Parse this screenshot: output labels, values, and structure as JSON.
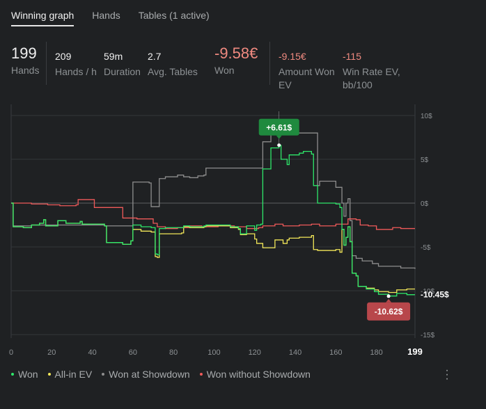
{
  "tabs": [
    {
      "label": "Winning graph",
      "active": true
    },
    {
      "label": "Hands",
      "active": false
    },
    {
      "label": "Tables (1 active)",
      "active": false
    }
  ],
  "stats": {
    "hands": {
      "value": "199",
      "label": "Hands"
    },
    "hands_per_hour": {
      "value": "209",
      "label": "Hands / h"
    },
    "duration": {
      "value": "59m",
      "label": "Duration"
    },
    "avg_tables": {
      "value": "2.7",
      "label": "Avg. Tables"
    },
    "won": {
      "value": "-9.58€",
      "label": "Won"
    },
    "amount_won_ev": {
      "value": "-9.15€",
      "label_line1": "Amount Won",
      "label_line2": "EV"
    },
    "win_rate_ev": {
      "value": "-115",
      "label_line1": "Win Rate EV,",
      "label_line2": "bb/100"
    }
  },
  "colors": {
    "won": "#2ee86a",
    "allin_ev": "#f3e859",
    "showdown": "#8e8e8e",
    "no_showdown": "#f05a5a",
    "badge_green": "#1f8a3e",
    "badge_red": "#b8474b"
  },
  "chart_data": {
    "type": "line",
    "xlim": [
      0,
      199
    ],
    "ylim": [
      -15,
      10
    ],
    "x_ticks": [
      0,
      20,
      40,
      60,
      80,
      100,
      120,
      140,
      160,
      180
    ],
    "x_last_label": "199",
    "y_ticks": [
      "10$",
      "5$",
      "0$",
      "-5$",
      "-10$",
      "-15$"
    ],
    "y_tick_values": [
      10,
      5,
      0,
      -5,
      -10,
      -15
    ],
    "grid": "horizontal",
    "legend_position": "bottom",
    "series": [
      {
        "name": "Won",
        "color_key": "won",
        "points": [
          [
            0,
            0
          ],
          [
            1,
            -2.7
          ],
          [
            6,
            -2.8
          ],
          [
            10,
            -2.5
          ],
          [
            14,
            -2.3
          ],
          [
            16,
            -1.9
          ],
          [
            17,
            -2.6
          ],
          [
            20,
            -2.6
          ],
          [
            23,
            -2.0
          ],
          [
            27,
            -2.3
          ],
          [
            34,
            -2.1
          ],
          [
            35,
            -2.4
          ],
          [
            40,
            -2.4
          ],
          [
            46,
            -2.6
          ],
          [
            47,
            -4.5
          ],
          [
            55,
            -4.7
          ],
          [
            59,
            -4.3
          ],
          [
            60,
            -2.5
          ],
          [
            64,
            -2.7
          ],
          [
            69,
            -2.8
          ],
          [
            71,
            -5.8
          ],
          [
            72,
            -5.9
          ],
          [
            73,
            -2.9
          ],
          [
            76,
            -2.8
          ],
          [
            84,
            -2.8
          ],
          [
            85,
            -2.6
          ],
          [
            88,
            -2.7
          ],
          [
            95,
            -2.6
          ],
          [
            96,
            -2.5
          ],
          [
            104,
            -2.5
          ],
          [
            108,
            -2.7
          ],
          [
            112,
            -2.9
          ],
          [
            113,
            -3.5
          ],
          [
            116,
            -2.6
          ],
          [
            120,
            -3.1
          ],
          [
            121,
            -2.5
          ],
          [
            123,
            -2.4
          ],
          [
            124,
            3.9
          ],
          [
            128,
            6.3
          ],
          [
            132,
            6.6
          ],
          [
            133,
            5.0
          ],
          [
            136,
            4.4
          ],
          [
            137,
            5.5
          ],
          [
            142,
            5.7
          ],
          [
            144,
            5.9
          ],
          [
            147,
            5.9
          ],
          [
            148,
            5.6
          ],
          [
            149,
            2.0
          ],
          [
            151,
            0
          ],
          [
            159,
            0
          ],
          [
            160,
            -0.1
          ],
          [
            162,
            -0.5
          ],
          [
            163,
            -3.0
          ],
          [
            164,
            -4.8
          ],
          [
            165,
            -3.9
          ],
          [
            166,
            -2.7
          ],
          [
            167,
            -4.4
          ],
          [
            168,
            -8.0
          ],
          [
            170,
            -8.3
          ],
          [
            171,
            -9.5
          ],
          [
            175,
            -9.8
          ],
          [
            179,
            -10.1
          ],
          [
            181,
            -10.4
          ],
          [
            186,
            -10.6
          ],
          [
            190,
            -10.3
          ],
          [
            195,
            -10.45
          ],
          [
            199,
            -10.45
          ]
        ]
      },
      {
        "name": "All-in EV",
        "color_key": "allin_ev",
        "points": [
          [
            0,
            0
          ],
          [
            1,
            -2.7
          ],
          [
            6,
            -2.8
          ],
          [
            10,
            -2.5
          ],
          [
            14,
            -2.3
          ],
          [
            16,
            -1.9
          ],
          [
            17,
            -2.6
          ],
          [
            20,
            -2.6
          ],
          [
            23,
            -2.0
          ],
          [
            27,
            -2.3
          ],
          [
            34,
            -2.1
          ],
          [
            35,
            -2.4
          ],
          [
            40,
            -2.4
          ],
          [
            46,
            -2.6
          ],
          [
            47,
            -4.5
          ],
          [
            55,
            -4.7
          ],
          [
            59,
            -4.3
          ],
          [
            60,
            -3.0
          ],
          [
            64,
            -3.2
          ],
          [
            69,
            -3.3
          ],
          [
            71,
            -6.1
          ],
          [
            72,
            -6.2
          ],
          [
            73,
            -3.5
          ],
          [
            76,
            -3.5
          ],
          [
            84,
            -3.4
          ],
          [
            85,
            -2.7
          ],
          [
            88,
            -2.8
          ],
          [
            95,
            -2.7
          ],
          [
            96,
            -2.6
          ],
          [
            104,
            -2.6
          ],
          [
            108,
            -2.8
          ],
          [
            112,
            -3.0
          ],
          [
            113,
            -3.6
          ],
          [
            116,
            -3.5
          ],
          [
            120,
            -4.1
          ],
          [
            121,
            -4.6
          ],
          [
            124,
            -5.1
          ],
          [
            130,
            -4.2
          ],
          [
            134,
            -4.6
          ],
          [
            136,
            -4.2
          ],
          [
            137,
            -4.0
          ],
          [
            142,
            -3.9
          ],
          [
            148,
            -3.7
          ],
          [
            149,
            -5.3
          ],
          [
            151,
            -5.4
          ],
          [
            159,
            -5.4
          ],
          [
            160,
            -5.3
          ],
          [
            162,
            -5.6
          ],
          [
            163,
            -3.0
          ],
          [
            164,
            -4.8
          ],
          [
            165,
            -3.9
          ],
          [
            166,
            -2.7
          ],
          [
            167,
            -4.4
          ],
          [
            168,
            -8.0
          ],
          [
            170,
            -8.3
          ],
          [
            171,
            -9.5
          ],
          [
            175,
            -9.7
          ],
          [
            179,
            -9.9
          ],
          [
            181,
            -10.1
          ],
          [
            186,
            -10.2
          ],
          [
            190,
            -9.9
          ],
          [
            195,
            -9.8
          ],
          [
            199,
            -9.8
          ]
        ]
      },
      {
        "name": "Won at Showdown",
        "color_key": "showdown",
        "points": [
          [
            0,
            0
          ],
          [
            1,
            -2.6
          ],
          [
            10,
            -2.5
          ],
          [
            20,
            -2.5
          ],
          [
            30,
            -2.5
          ],
          [
            40,
            -2.5
          ],
          [
            46,
            -2.6
          ],
          [
            55,
            -2.6
          ],
          [
            59,
            -2.6
          ],
          [
            60,
            2.4
          ],
          [
            67,
            2.4
          ],
          [
            68,
            2.3
          ],
          [
            69,
            -0.4
          ],
          [
            72,
            -0.4
          ],
          [
            73,
            2.8
          ],
          [
            76,
            3.0
          ],
          [
            82,
            3.2
          ],
          [
            85,
            3.0
          ],
          [
            88,
            2.9
          ],
          [
            92,
            3.1
          ],
          [
            95,
            3.2
          ],
          [
            96,
            4.0
          ],
          [
            123,
            4.0
          ],
          [
            124,
            7.0
          ],
          [
            128,
            8.0
          ],
          [
            149,
            8.0
          ],
          [
            151,
            2.0
          ],
          [
            152,
            2.5
          ],
          [
            159,
            2.5
          ],
          [
            160,
            1.8
          ],
          [
            162,
            1.8
          ],
          [
            163,
            0
          ],
          [
            164,
            -1.5
          ],
          [
            165,
            0
          ],
          [
            166,
            0.5
          ],
          [
            167,
            -2.0
          ],
          [
            168,
            -6.0
          ],
          [
            170,
            -6.3
          ],
          [
            173,
            -6.6
          ],
          [
            178,
            -6.9
          ],
          [
            181,
            -7.2
          ],
          [
            192,
            -7.4
          ],
          [
            199,
            -7.5
          ]
        ]
      },
      {
        "name": "Won without Showdown",
        "color_key": "no_showdown",
        "points": [
          [
            0,
            0
          ],
          [
            4,
            0
          ],
          [
            10,
            -0.1
          ],
          [
            18,
            -0.2
          ],
          [
            24,
            -0.3
          ],
          [
            32,
            -0.2
          ],
          [
            33,
            0.4
          ],
          [
            40,
            0.4
          ],
          [
            41,
            -0.5
          ],
          [
            47,
            -0.5
          ],
          [
            55,
            -1.7
          ],
          [
            62,
            -1.8
          ],
          [
            70,
            -2.3
          ],
          [
            72,
            -2.7
          ],
          [
            76,
            -2.9
          ],
          [
            82,
            -2.8
          ],
          [
            88,
            -2.6
          ],
          [
            94,
            -2.7
          ],
          [
            102,
            -2.6
          ],
          [
            110,
            -2.7
          ],
          [
            116,
            -2.9
          ],
          [
            122,
            -2.8
          ],
          [
            124,
            -2.6
          ],
          [
            130,
            -2.4
          ],
          [
            134,
            -2.6
          ],
          [
            142,
            -2.5
          ],
          [
            148,
            -2.4
          ],
          [
            150,
            -2.4
          ],
          [
            152,
            -2.6
          ],
          [
            160,
            -2.4
          ],
          [
            164,
            -2.4
          ],
          [
            166,
            -1.8
          ],
          [
            170,
            -1.9
          ],
          [
            172,
            -2.5
          ],
          [
            176,
            -2.6
          ],
          [
            180,
            -3.0
          ],
          [
            185,
            -3.0
          ],
          [
            188,
            -2.8
          ],
          [
            192,
            -2.9
          ],
          [
            199,
            -2.9
          ]
        ]
      }
    ],
    "annotations": [
      {
        "text": "+6.61$",
        "x": 132,
        "y": 6.61,
        "style": "green-badge-above"
      },
      {
        "text": "-10.62$",
        "x": 186,
        "y": -10.62,
        "style": "red-badge-below"
      },
      {
        "text": "-10.45$",
        "x": 199,
        "y": -10.45,
        "style": "end-label"
      }
    ]
  },
  "legend": [
    {
      "label": "Won",
      "color_key": "won"
    },
    {
      "label": "All-in EV",
      "color_key": "allin_ev"
    },
    {
      "label": "Won at Showdown",
      "color_key": "showdown"
    },
    {
      "label": "Won without Showdown",
      "color_key": "no_showdown"
    }
  ],
  "menu_icon": "more-vertical-icon"
}
